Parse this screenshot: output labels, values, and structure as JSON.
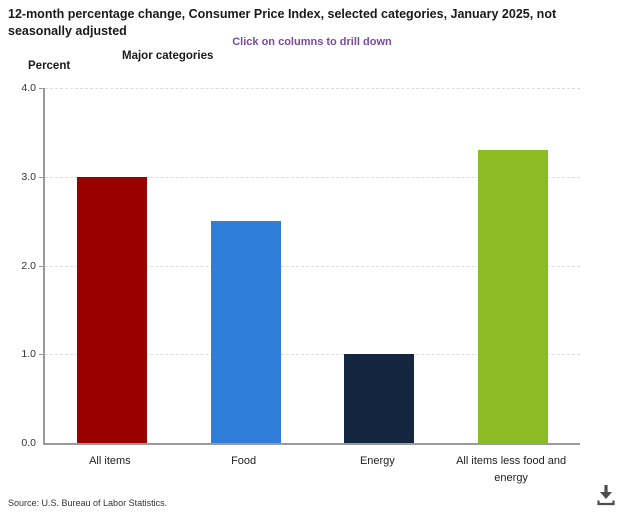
{
  "header": {
    "title": "12-month percentage change, Consumer Price Index, selected categories, January 2025, not seasonally adjusted",
    "drill_hint": "Click on columns to drill down",
    "drill_hint_color": "#7b4aa2"
  },
  "chart_data": {
    "type": "bar",
    "title": "Major categories",
    "ylabel": "Percent",
    "categories": [
      "All items",
      "Food",
      "Energy",
      "All items less food and energy"
    ],
    "values": [
      3.0,
      2.5,
      1.0,
      3.3
    ],
    "colors": [
      "#990000",
      "#2f7ed8",
      "#12273f",
      "#8bbd22"
    ],
    "ylim": [
      0,
      4
    ],
    "yticks": [
      {
        "label": "0.0",
        "value": 0
      },
      {
        "label": "1.0",
        "value": 1
      },
      {
        "label": "2.0",
        "value": 2
      },
      {
        "label": "3.0",
        "value": 3
      },
      {
        "label": "4.0",
        "value": 4
      }
    ],
    "grid": true,
    "legend": false
  },
  "footer": {
    "source": "Source: U.S. Bureau of Labor Statistics."
  },
  "icons": {
    "download": "download-icon"
  }
}
